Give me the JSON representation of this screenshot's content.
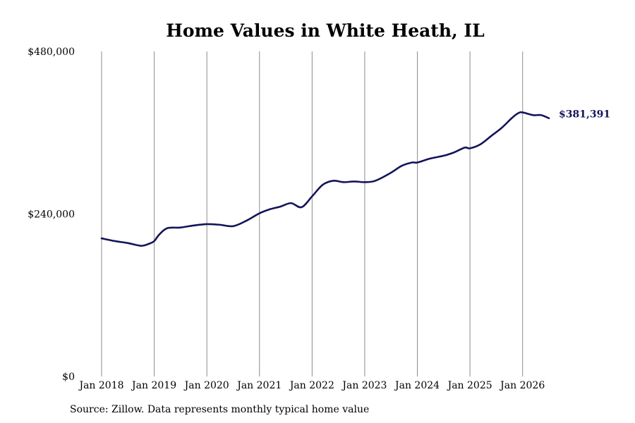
{
  "chart_data": {
    "type": "line",
    "title": "Home Values in White Heath, IL",
    "xlabel": "",
    "ylabel": "",
    "ylim": [
      0,
      480000
    ],
    "y_ticks": [
      {
        "value": 0,
        "label": "$0"
      },
      {
        "value": 240000,
        "label": "$240,000"
      },
      {
        "value": 480000,
        "label": "$480,000"
      }
    ],
    "x_ticks": [
      {
        "value": 2018.0,
        "label": "Jan 2018"
      },
      {
        "value": 2019.0,
        "label": "Jan 2019"
      },
      {
        "value": 2020.0,
        "label": "Jan 2020"
      },
      {
        "value": 2021.0,
        "label": "Jan 2021"
      },
      {
        "value": 2022.0,
        "label": "Jan 2022"
      },
      {
        "value": 2023.0,
        "label": "Jan 2023"
      },
      {
        "value": 2024.0,
        "label": "Jan 2024"
      },
      {
        "value": 2025.0,
        "label": "Jan 2025"
      },
      {
        "value": 2026.0,
        "label": "Jan 2026"
      }
    ],
    "xlim": [
      2018.0,
      2026.5
    ],
    "vertical_grid": true,
    "line_color": "#14145a",
    "series": [
      {
        "x": [
          2018.0,
          2018.25,
          2018.5,
          2018.75,
          2018.9,
          2019.0,
          2019.1,
          2019.25,
          2019.5,
          2019.75,
          2020.0,
          2020.25,
          2020.5,
          2020.75,
          2021.0,
          2021.2,
          2021.4,
          2021.6,
          2021.8,
          2022.0,
          2022.2,
          2022.4,
          2022.6,
          2022.8,
          2023.0,
          2023.2,
          2023.5,
          2023.7,
          2023.9,
          2024.0,
          2024.25,
          2024.5,
          2024.7,
          2024.9,
          2025.0,
          2025.2,
          2025.4,
          2025.6,
          2025.8,
          2025.92,
          2026.0,
          2026.2,
          2026.35,
          2026.5
        ],
        "y": [
          204000,
          200000,
          197000,
          193000,
          196000,
          200000,
          210000,
          219000,
          220000,
          223000,
          225000,
          224000,
          222000,
          230000,
          241000,
          247000,
          251000,
          256000,
          250000,
          266000,
          283000,
          289000,
          287000,
          288000,
          287000,
          289000,
          301000,
          311000,
          316000,
          316000,
          322000,
          326000,
          331000,
          338000,
          337000,
          343000,
          355000,
          367000,
          382000,
          389000,
          390000,
          386000,
          386000,
          381391
        ]
      }
    ],
    "end_label": "$381,391"
  },
  "source_note": "Source: Zillow. Data represents monthly typical home value"
}
